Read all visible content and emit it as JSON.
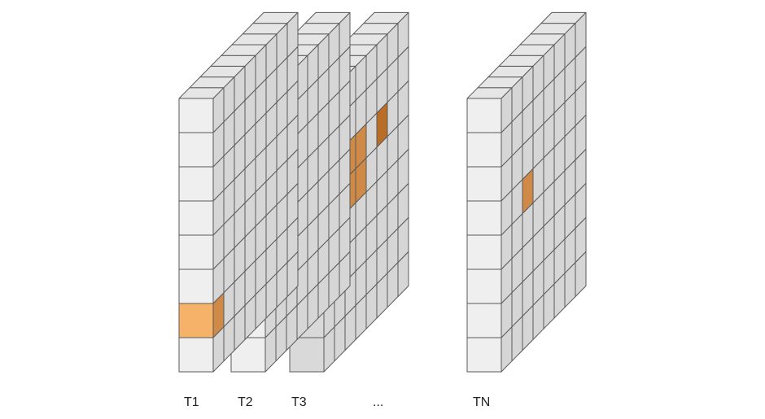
{
  "colors": {
    "front": "#efefef",
    "side": "#d6d6d6",
    "top": "#e6e6e6",
    "face_dark": "#d9d9d9",
    "stroke": "#5a5a5a",
    "highlight": "#f7b26a",
    "highlight_side": "#cf8a47",
    "highlight_dark": "#b86e26"
  },
  "blocks": [
    {
      "id": "t1",
      "label": "T1",
      "highlight": [
        {
          "face": "front",
          "row": 6
        },
        {
          "face": "side",
          "row": 6,
          "col": 0
        }
      ]
    },
    {
      "id": "t2",
      "label": "T2",
      "highlight": [
        {
          "face": "side",
          "row": 1,
          "col": 0
        },
        {
          "face": "side",
          "row": 4,
          "col": 0
        }
      ]
    },
    {
      "id": "t3",
      "label": "T3",
      "highlight": [
        {
          "face": "side",
          "row": 2,
          "col": 2
        },
        {
          "face": "side",
          "row": 2,
          "col": 3
        },
        {
          "face": "side",
          "row": 3,
          "col": 2
        },
        {
          "face": "side",
          "row": 3,
          "col": 3
        },
        {
          "face": "side",
          "row": 2,
          "col": 5,
          "dark": true
        }
      ]
    },
    {
      "id": "tn",
      "label": "TN",
      "highlight": [
        {
          "face": "side",
          "row": 3,
          "col": 2
        }
      ]
    }
  ],
  "ellipsis": "..."
}
